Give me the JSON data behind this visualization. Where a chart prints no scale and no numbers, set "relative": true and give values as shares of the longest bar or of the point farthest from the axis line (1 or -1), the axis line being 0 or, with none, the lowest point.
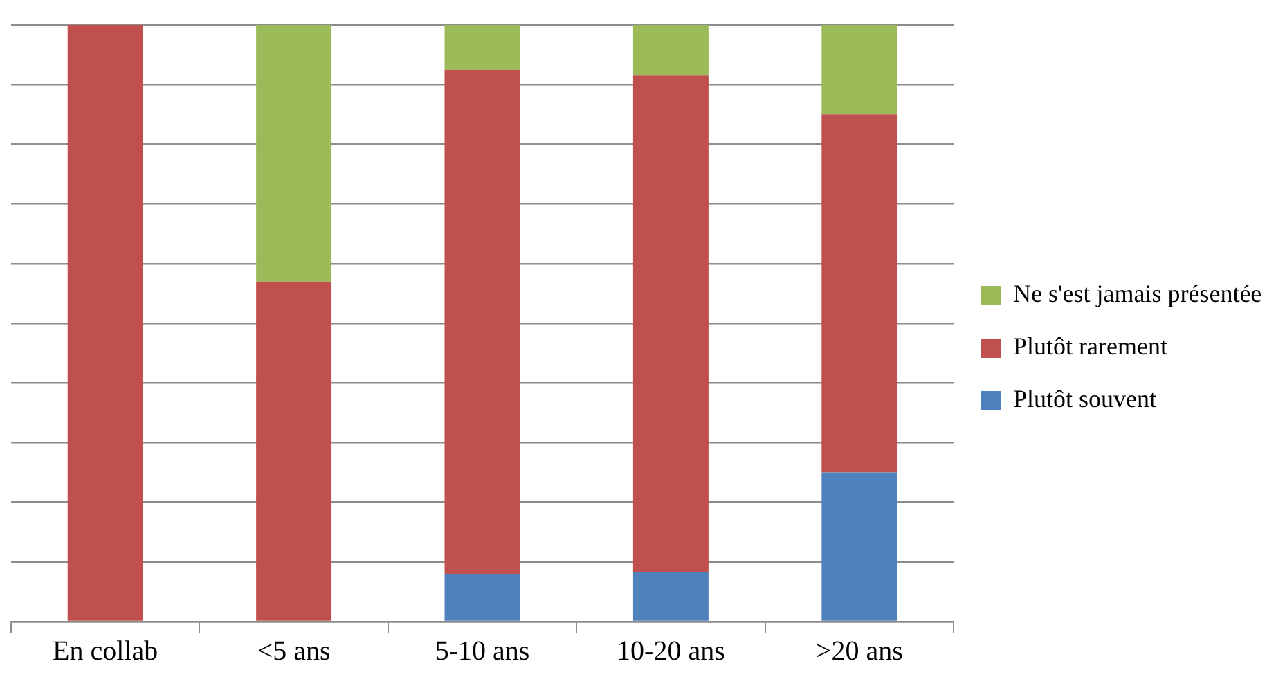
{
  "chart_data": {
    "type": "bar",
    "stacked": true,
    "relative": true,
    "grid": "y",
    "legend": "right",
    "categories": [
      "En collab",
      "<5 ans",
      "5-10 ans",
      "10-20 ans",
      ">20 ans"
    ],
    "series": [
      {
        "name": "Plutôt souvent",
        "color": "#4f81bd",
        "values": [
          0,
          0,
          0.08,
          0.083,
          0.25
        ]
      },
      {
        "name": "Plutôt rarement",
        "color": "#c0504d",
        "values": [
          1,
          0.57,
          0.845,
          0.832,
          0.6
        ]
      },
      {
        "name": "Ne s'est jamais présentée",
        "color": "#9bbb59",
        "values": [
          0,
          0.43,
          0.075,
          0.085,
          0.15
        ]
      }
    ]
  }
}
